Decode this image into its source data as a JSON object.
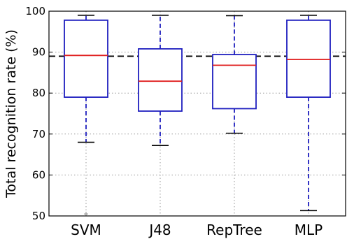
{
  "chart_data": {
    "type": "box",
    "title": "",
    "ylabel": "Total recognition rate (%)",
    "xlabel": "",
    "ylim": [
      50,
      100
    ],
    "yticks": [
      50,
      60,
      70,
      80,
      90,
      100
    ],
    "grid": true,
    "reference_line": {
      "y": 89,
      "style": "dashed"
    },
    "categories": [
      "SVM",
      "J48",
      "RepTree",
      "MLP"
    ],
    "boxes": [
      {
        "name": "SVM",
        "whisker_low": 68,
        "q1": 79,
        "median": 89.2,
        "q3": 97.8,
        "whisker_high": 99,
        "outliers": [
          50.5
        ]
      },
      {
        "name": "J48",
        "whisker_low": 67.2,
        "q1": 75.6,
        "median": 82.9,
        "q3": 90.8,
        "whisker_high": 99,
        "outliers": []
      },
      {
        "name": "RepTree",
        "whisker_low": 70.2,
        "q1": 76.2,
        "median": 86.8,
        "q3": 89.4,
        "whisker_high": 98.9,
        "outliers": []
      },
      {
        "name": "MLP",
        "whisker_low": 51.3,
        "q1": 79,
        "median": 88.2,
        "q3": 97.8,
        "whisker_high": 99,
        "outliers": []
      }
    ],
    "colors": {
      "box": "#1f1fbf",
      "median": "#e02020",
      "whisker": "#1f1fbf",
      "cap": "#000000",
      "grid": "#9a9a9a",
      "reference": "#000000"
    }
  }
}
